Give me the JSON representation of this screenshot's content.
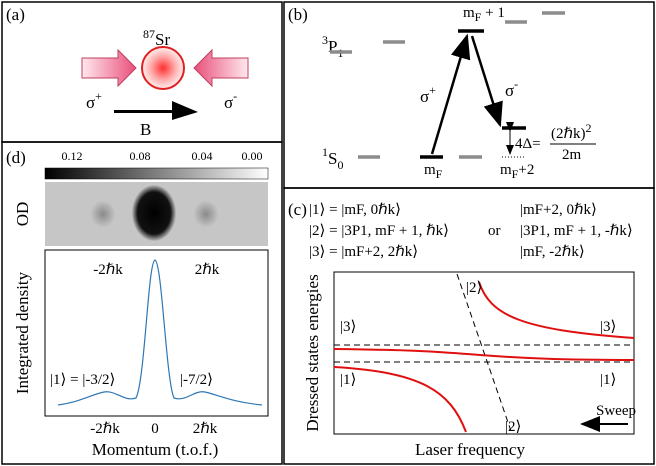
{
  "panels": {
    "a": {
      "label": "(a)",
      "atom": {
        "sup": "87",
        "base": "Sr"
      },
      "sigma_plus": {
        "base": "σ",
        "sup": "+"
      },
      "sigma_minus": {
        "base": "σ",
        "sup": "-"
      },
      "field": "B"
    },
    "b": {
      "label": "(b)",
      "upper_state": {
        "sup": "3",
        "base": "P",
        "sub": "1"
      },
      "lower_state": {
        "sup": "1",
        "base": "S",
        "sub": "0"
      },
      "top_level": {
        "base": "m",
        "sub": "F",
        "rest": " + 1"
      },
      "ground_level": {
        "base": "m",
        "sub": "F"
      },
      "shifted_level": {
        "base": "m",
        "sub": "F",
        "rest": "+2"
      },
      "sigma_plus": {
        "base": "σ",
        "sup": "+"
      },
      "sigma_minus": {
        "base": "σ",
        "sup": "-"
      },
      "shift": "4Δ=",
      "shift_numerator": "(2ℏk)",
      "shift_power": "2",
      "shift_denominator": "2m"
    },
    "c": {
      "label": "(c)",
      "states_left": [
        "|1⟩ = |mF, 0ℏk⟩",
        "|2⟩ = |3P1, mF + 1, ℏk⟩",
        "|3⟩ = |mF+2, 2ℏk⟩"
      ],
      "or": "or",
      "states_right": [
        "|mF+2, 0ℏk⟩",
        "|3P1, mF + 1, -ℏk⟩",
        "|mF, -2ℏk⟩"
      ],
      "ylabel": "Dressed states energies",
      "xlabel": "Laser frequency",
      "sweep": "Sweep",
      "curve_labels": {
        "top": "|2⟩",
        "bottom": "|2⟩",
        "left_upper": "|3⟩",
        "left_lower": "|1⟩",
        "right_upper": "|3⟩",
        "right_lower": "|1⟩"
      }
    },
    "d": {
      "label": "(d)",
      "colorbar_ticks": [
        "0.12",
        "0.08",
        "0.04",
        "0.00"
      ],
      "image_label": "OD",
      "image_peaks": [
        "-2ℏk",
        "2ℏk"
      ],
      "ylabel": "Integrated density",
      "xlabel": "Momentum (t.o.f.)",
      "xticks": [
        "-2ℏk",
        "0",
        "2ℏk"
      ],
      "left_annotation": "|1⟩ = |-3/2⟩",
      "right_annotation": "|-7/2⟩"
    }
  }
}
